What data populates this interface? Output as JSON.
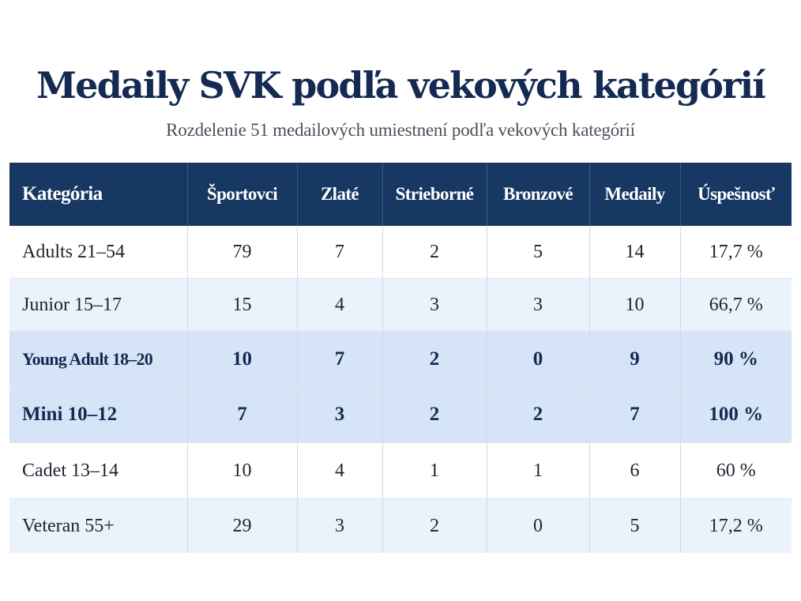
{
  "title": "Medaily SVK podľa vekových kategórií",
  "subtitle": "Rozdelenie 51 medailových umiestnení podľa vekových kategórií",
  "chart_data": {
    "type": "table",
    "title": "Medaily SVK podľa vekových kategórií",
    "subtitle": "Rozdelenie 51 medailových umiestnení podľa vekových kategórií",
    "columns": [
      "Kategória",
      "Športovci",
      "Zlaté",
      "Strieborné",
      "Bronzové",
      "Medaily",
      "Úspešnosť"
    ],
    "rows": [
      {
        "category": "Adults 21–54",
        "athletes": "79",
        "gold": "7",
        "silver": "2",
        "bronze": "5",
        "medals": "14",
        "success": "17,7 %",
        "highlight": false
      },
      {
        "category": "Junior 15–17",
        "athletes": "15",
        "gold": "4",
        "silver": "3",
        "bronze": "3",
        "medals": "10",
        "success": "66,7 %",
        "highlight": false
      },
      {
        "category": "Young Adult 18–20",
        "athletes": "10",
        "gold": "7",
        "silver": "2",
        "bronze": "0",
        "medals": "9",
        "success": "90 %",
        "highlight": true
      },
      {
        "category": "Mini 10–12",
        "athletes": "7",
        "gold": "3",
        "silver": "2",
        "bronze": "2",
        "medals": "7",
        "success": "100 %",
        "highlight": true
      },
      {
        "category": "Cadet 13–14",
        "athletes": "10",
        "gold": "4",
        "silver": "1",
        "bronze": "1",
        "medals": "6",
        "success": "60 %",
        "highlight": false
      },
      {
        "category": "Veteran 55+",
        "athletes": "29",
        "gold": "3",
        "silver": "2",
        "bronze": "0",
        "medals": "5",
        "success": "17,2 %",
        "highlight": false
      }
    ]
  },
  "colors": {
    "header_bg": "#163863",
    "header_text": "#ffffff",
    "title": "#152a52",
    "row_light": "#ffffff",
    "row_tint": "#eaf2fb",
    "row_highlight": "#d5e5f7"
  }
}
